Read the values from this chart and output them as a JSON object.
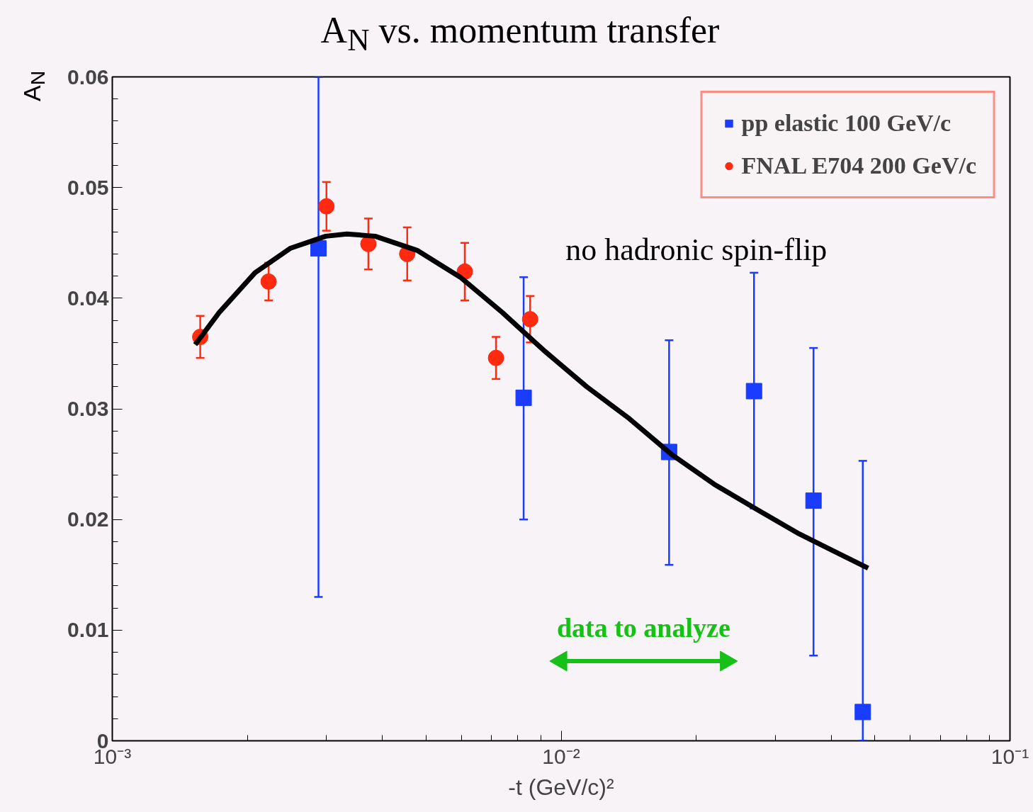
{
  "chart_data": {
    "type": "scatter",
    "title": "A$_{N}$ vs. momentum transfer",
    "xlabel": "-t (GeV/c)²",
    "ylabel": "A$_{N}$",
    "log": "x",
    "xlim": [
      0.001,
      0.1
    ],
    "ylim": [
      0,
      0.06
    ],
    "xticks": [
      {
        "value": 0.001,
        "label": "10⁻³"
      },
      {
        "value": 0.01,
        "label": "10⁻²"
      },
      {
        "value": 0.1,
        "label": "10⁻¹"
      }
    ],
    "yticks": [
      0,
      0.01,
      0.02,
      0.03,
      0.04,
      0.05,
      0.06
    ],
    "grid": false,
    "legend": "top right",
    "series": [
      {
        "name": "pp elastic 100 GeV/c",
        "color": "#1a3cff",
        "marker": "square",
        "x": [
          0.00288,
          0.00825,
          0.0174,
          0.0269,
          0.0365,
          0.047
        ],
        "values": [
          0.0445,
          0.031,
          0.0261,
          0.0316,
          0.0217,
          0.0026
        ],
        "errors": [
          [
            0.013,
            0.06
          ],
          [
            0.02,
            0.0419
          ],
          [
            0.0159,
            0.0362
          ],
          [
            0.021,
            0.0423
          ],
          [
            0.0077,
            0.0355
          ],
          [
            0,
            0.0253
          ]
        ]
      },
      {
        "name": "FNAL E704 200 GeV/c",
        "color": "#ff2a10",
        "marker": "circle",
        "x": [
          0.00157,
          0.00223,
          0.003,
          0.00372,
          0.00454,
          0.0061,
          0.00716,
          0.00853
        ],
        "values": [
          0.0365,
          0.0415,
          0.0483,
          0.0449,
          0.044,
          0.0424,
          0.0346,
          0.0381
        ],
        "errors": [
          0.0019,
          0.0017,
          0.0022,
          0.0023,
          0.0024,
          0.0026,
          0.0019,
          0.0021
        ]
      },
      {
        "type": "line",
        "name": "data to analyze",
        "color": "#16c016",
        "marker": "triangle",
        "x": [
          0.01,
          0.0233
        ],
        "values": [
          0.0072,
          0.0072
        ]
      },
      {
        "type": "line",
        "color": "#000000",
        "marker": "none",
        "x": [
          0.00153,
          0.00173,
          0.00208,
          0.00249,
          0.00299,
          0.00333,
          0.00385,
          0.00479,
          0.00596,
          0.0074,
          0.0092,
          0.0114,
          0.0142,
          0.0176,
          0.0219,
          0.0273,
          0.0339,
          0.0421,
          0.0483
        ],
        "values": [
          0.0358,
          0.0387,
          0.0423,
          0.0445,
          0.0456,
          0.0458,
          0.0456,
          0.0443,
          0.0419,
          0.0387,
          0.0352,
          0.032,
          0.0291,
          0.0259,
          0.0232,
          0.0209,
          0.0187,
          0.0168,
          0.0156
        ]
      }
    ],
    "annotations": [
      "no hadronic spin-flip"
    ]
  }
}
